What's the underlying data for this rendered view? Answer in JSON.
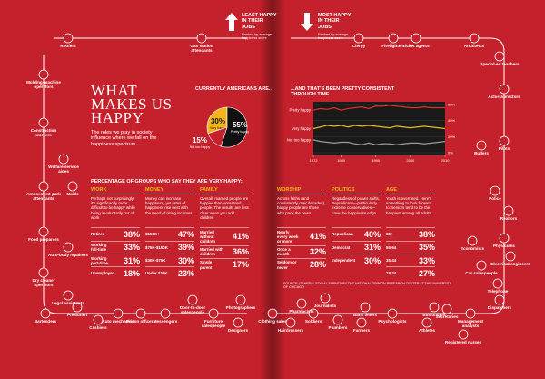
{
  "header": {
    "title_lines": [
      "WHAT",
      "MAKES US",
      "HAPPY"
    ],
    "subtitle": "The roles we play in society influence where we fall on the happiness spectrum"
  },
  "least": {
    "label": "LEAST HAPPY IN THEIR JOBS",
    "note": "Ranked by average happiness score"
  },
  "most": {
    "label": "MOST HAPPY IN THEIR JOBS",
    "note": "Ranked by average happiness score"
  },
  "pie": {
    "type": "pie",
    "title": "CURRENTLY AMERICANS ARE...",
    "categories": [
      "Very happy",
      "Pretty happy",
      "Not too happy"
    ],
    "values": [
      30,
      55,
      15
    ],
    "value_labels": [
      "30%",
      "55%",
      "15%"
    ],
    "colors": [
      "#f2b51c",
      "#111111",
      "#c5212c"
    ]
  },
  "trend": {
    "type": "line",
    "title": "...AND THAT'S BEEN PRETTY CONSISTENT THROUGH TIME",
    "x": [
      1972,
      1974,
      1976,
      1978,
      1980,
      1982,
      1984,
      1986,
      1988,
      1990,
      1992,
      1994,
      1996,
      1998,
      2000,
      2002,
      2004,
      2006,
      2008,
      2010
    ],
    "series": [
      {
        "name": "Pretty happy",
        "color": "#e0312b",
        "values": [
          53,
          55,
          54,
          56,
          53,
          55,
          56,
          57,
          55,
          58,
          58,
          59,
          58,
          57,
          56,
          56,
          57,
          56,
          56,
          56
        ]
      },
      {
        "name": "Very happy",
        "color": "#f2b51c",
        "values": [
          30,
          32,
          34,
          33,
          34,
          32,
          34,
          33,
          34,
          33,
          32,
          31,
          33,
          32,
          31,
          32,
          33,
          32,
          31,
          30
        ]
      },
      {
        "name": "Not too happy",
        "color": "#9a9a9a",
        "values": [
          16,
          14,
          13,
          12,
          13,
          13,
          11,
          10,
          12,
          10,
          11,
          11,
          10,
          11,
          12,
          12,
          11,
          12,
          13,
          14
        ]
      }
    ],
    "xlim": [
      1972,
      2010
    ],
    "xticks": [
      1972,
      1980,
      1990,
      2000,
      2010
    ],
    "ylim": [
      0,
      60
    ],
    "yticks": [
      {
        "value": 0,
        "label": "0%"
      },
      {
        "value": 20,
        "label": "20%"
      },
      {
        "value": 40,
        "label": "40%"
      },
      {
        "value": 60,
        "label": "60%"
      }
    ]
  },
  "sections": {
    "heading": "PERCENTAGE OF GROUPS WHO SAY THEY ARE VERY HAPPY:",
    "groups": [
      {
        "title": "WORK",
        "text": "Perhaps not surprisingly, it's significantly more difficult to be happy while being involuntarily out of work",
        "rows": [
          {
            "label": "Retired",
            "value": "38%"
          },
          {
            "label": "Working full-time",
            "value": "33%"
          },
          {
            "label": "Working part-time",
            "value": "31%"
          },
          {
            "label": "Unemployed",
            "value": "18%"
          }
        ]
      },
      {
        "title": "MONEY",
        "text": "Money can increase happiness, yet rates of happiness rise best with the trend of rising incomes",
        "rows": [
          {
            "label": "$150K+",
            "value": "47%"
          },
          {
            "label": "$75K-$150K",
            "value": "39%"
          },
          {
            "label": "$30K-$75K",
            "value": "30%"
          },
          {
            "label": "Under $30K",
            "value": "23%"
          }
        ]
      },
      {
        "title": "FAMILY",
        "text": "Overall, married people are happier than unmarried people. The results are less clear when you add children",
        "rows": [
          {
            "label": "Married without children",
            "value": "41%"
          },
          {
            "label": "Married with children",
            "value": "36%"
          },
          {
            "label": "Single parent",
            "value": "17%"
          }
        ]
      },
      {
        "title": "WORSHIP",
        "text": "Across faiths (and consistently over decades), happy people are those who pack the pews",
        "rows": [
          {
            "label": "Nearly every week or more",
            "value": "41%"
          },
          {
            "label": "Once a month",
            "value": "32%"
          },
          {
            "label": "Seldom or never",
            "value": "28%"
          }
        ]
      },
      {
        "title": "POLITICS",
        "text": "Regardless of power shifts, Republicans—particularly extreme conservatives—have the happiness edge",
        "rows": [
          {
            "label": "Republican",
            "value": "40%"
          },
          {
            "label": "Democrat",
            "value": "31%"
          },
          {
            "label": "Independent",
            "value": "30%"
          }
        ]
      },
      {
        "title": "AGE",
        "text": "Youth is overrated. Here's something to look forward to: seniors tend to be the happiest among all adults",
        "rows": [
          {
            "label": "65+",
            "value": "38%"
          },
          {
            "label": "55-64",
            "value": "35%"
          },
          {
            "label": "35-44",
            "value": "33%"
          },
          {
            "label": "18-24",
            "value": "27%"
          }
        ]
      }
    ]
  },
  "source": "SOURCE: GENERAL SOCIAL SURVEY BY THE NATIONAL OPINION RESEARCH CENTER AT THE UNIVERSITY OF CHICAGO",
  "occupations": [
    "Roofers",
    "Gas station attendants",
    "Molding-machine operators",
    "Construction workers",
    "Welfare service aides",
    "Amusement-park attendants",
    "Maids",
    "Food preparers",
    "Auto-body repairers",
    "Dry cleaner operators",
    "Legal assistants",
    "Bartenders",
    "Pressmen",
    "Cashiers",
    "Auto mechanics",
    "Prison officers",
    "Messengers",
    "Door-to-door salespeople",
    "Furniture salespeople",
    "Photographers",
    "Designers",
    "Clergy",
    "Firefighters",
    "Ticket agents",
    "Architects",
    "Special-ed teachers",
    "Actors/directors",
    "Pilots",
    "Butlers",
    "Police",
    "Realtors",
    "Physicians",
    "Economists",
    "Electrical engineers",
    "Car salespeople",
    "Telephone",
    "Dispatchers",
    "Secretaries",
    "Management analysts",
    "Registered nurses",
    "Athletes",
    "Bus drivers",
    "Psychologists",
    "Bank tellers",
    "Farmers",
    "Plumbers",
    "Journalists",
    "Soldiers",
    "Pharmacists",
    "Clothing sales",
    "Hairdressers"
  ]
}
